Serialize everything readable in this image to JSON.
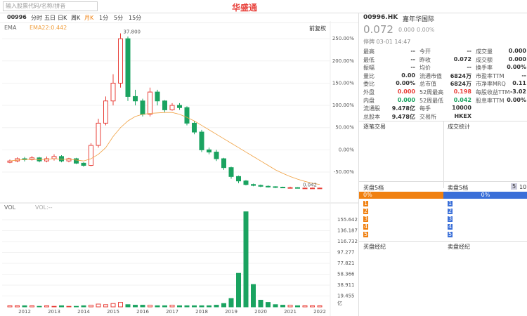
{
  "toolbar": {
    "search": "输入股票代码/名称/拼音",
    "code": "00996",
    "periods": [
      "分时",
      "五日",
      "日K",
      "周K",
      "月K",
      "1分",
      "5分",
      "15分"
    ],
    "logo": "华盛通"
  },
  "chart_data": [
    {
      "type": "candlestick",
      "ema_label": "EMA",
      "adjust": "前复权",
      "max_label": "37.800",
      "min_label": "0.042",
      "categories": [
        null,
        null,
        "2012",
        null,
        null,
        null,
        "2013",
        null,
        null,
        null,
        "2014",
        null,
        null,
        null,
        "2015",
        null,
        null,
        null,
        "2016",
        null,
        null,
        null,
        "2017",
        null,
        null,
        null,
        "2018",
        null,
        null,
        null,
        "2019",
        null,
        null,
        null,
        "2020",
        null,
        null,
        null,
        "2021",
        null,
        null,
        null,
        "2022"
      ],
      "open": [
        -28,
        -25,
        -20,
        -22,
        -18,
        -25,
        -20,
        -15,
        -25,
        -20,
        -30,
        -35,
        10,
        60,
        110,
        150,
        250,
        120,
        110,
        80,
        130,
        110,
        90,
        100,
        95,
        60,
        40,
        0,
        -5,
        -20,
        -40,
        -60,
        -70,
        -78,
        -80,
        -82,
        -83,
        -84,
        -85,
        -85,
        -86,
        -86,
        -86
      ],
      "high": [
        -22,
        -17,
        -16,
        -14,
        -16,
        -15,
        -10,
        -12,
        -18,
        -18,
        -28,
        15,
        70,
        120,
        170,
        262,
        255,
        135,
        115,
        140,
        135,
        112,
        105,
        105,
        98,
        65,
        45,
        5,
        0,
        -18,
        -38,
        -58,
        -68,
        -76,
        -78,
        -80,
        -82,
        -83,
        -83,
        -84,
        -85,
        -85,
        -85
      ],
      "low": [
        -30,
        -28,
        -26,
        -24,
        -28,
        -28,
        -24,
        -28,
        -28,
        -32,
        -38,
        -37,
        5,
        55,
        100,
        140,
        110,
        100,
        75,
        75,
        100,
        85,
        88,
        90,
        55,
        35,
        -5,
        -10,
        -25,
        -45,
        -65,
        -75,
        -80,
        -82,
        -84,
        -85,
        -86,
        -86,
        -87,
        -87,
        -87,
        -87,
        -87
      ],
      "close": [
        -25,
        -20,
        -22,
        -18,
        -25,
        -20,
        -15,
        -25,
        -20,
        -30,
        -35,
        10,
        60,
        110,
        150,
        250,
        120,
        110,
        80,
        130,
        110,
        90,
        100,
        95,
        60,
        40,
        0,
        -5,
        -20,
        -40,
        -60,
        -70,
        -78,
        -80,
        -82,
        -83,
        -84,
        -85,
        -85,
        -86,
        -86,
        -86,
        -86
      ],
      "ema": {
        "name": "EMA22:0.442",
        "color": "#f0a040",
        "values": [
          -25,
          -23,
          -22,
          -21,
          -22,
          -21,
          -20,
          -21,
          -21,
          -23,
          -25,
          -20,
          -10,
          5,
          30,
          50,
          65,
          75,
          80,
          82,
          83,
          84,
          84,
          80,
          73,
          65,
          55,
          45,
          35,
          25,
          15,
          5,
          -5,
          -15,
          -25,
          -35,
          -45,
          -53,
          -60,
          -66,
          -71,
          -75,
          -78
        ]
      },
      "up_color": "#e8403a",
      "down_color": "#1aa360",
      "ylim": [
        -110,
        266
      ],
      "yticks": [
        {
          "value": 250,
          "label": "250.00%"
        },
        {
          "value": 200,
          "label": "200.00%"
        },
        {
          "value": 150,
          "label": "150.00%"
        },
        {
          "value": 100,
          "label": "100.00%"
        },
        {
          "value": 50,
          "label": "50.00%"
        },
        {
          "value": 0,
          "label": "0.00%"
        },
        {
          "value": -50,
          "label": "-50.00%"
        }
      ]
    },
    {
      "type": "bar",
      "title": "VOL",
      "legend": "VOL:--",
      "unit": "亿",
      "values": [
        2,
        2,
        2,
        2,
        1,
        2,
        1,
        2,
        1,
        1,
        2,
        3,
        5,
        4,
        6,
        8,
        4,
        3,
        3,
        3,
        2,
        2,
        3,
        2,
        2,
        2,
        2,
        2,
        3,
        6,
        15,
        60,
        170,
        40,
        12,
        8,
        4,
        3,
        3,
        2,
        2,
        2,
        2
      ],
      "ylim": [
        0,
        172
      ],
      "yticks": [
        155.642,
        136.187,
        116.732,
        97.277,
        77.821,
        58.366,
        38.911,
        19.455
      ]
    }
  ],
  "quote": {
    "code": "00996.HK",
    "name": "嘉年华国际",
    "price": "0.072",
    "change": "0.000",
    "pct": "0.00%",
    "status": "停牌 03-01 14:47",
    "stats": [
      [
        {
          "label": "最高",
          "value": "--"
        },
        {
          "label": "今开",
          "value": "--"
        },
        {
          "label": "成交量",
          "value": "0.000"
        }
      ],
      [
        {
          "label": "最低",
          "value": "--"
        },
        {
          "label": "昨收",
          "value": "0.072"
        },
        {
          "label": "成交额",
          "value": "0.000"
        }
      ],
      [
        {
          "label": "振幅",
          "value": "--"
        },
        {
          "label": "均价",
          "value": "--"
        },
        {
          "label": "换手率",
          "value": "0.00%"
        }
      ],
      [
        {
          "label": "量比",
          "value": "0.00"
        },
        {
          "label": "流通市值",
          "value": "6824万"
        },
        {
          "label": "市盈率TTM",
          "value": "--"
        }
      ],
      [
        {
          "label": "委比",
          "value": "0.00%"
        },
        {
          "label": "总市值",
          "value": "6824万"
        },
        {
          "label": "市净率MRQ",
          "value": "0.11"
        }
      ],
      [
        {
          "label": "外盘",
          "value": "0.000",
          "color": "#e8403a"
        },
        {
          "label": "52周最高",
          "value": "0.198",
          "color": "#e8403a"
        },
        {
          "label": "每股收益TTM",
          "value": "-3.02"
        }
      ],
      [
        {
          "label": "内盘",
          "value": "0.000",
          "color": "#1aa360"
        },
        {
          "label": "52周最低",
          "value": "0.042",
          "color": "#1aa360"
        },
        {
          "label": "股息率TTM",
          "value": "0.00%"
        }
      ],
      [
        {
          "label": "流通股",
          "value": "9.478亿"
        },
        {
          "label": "每手",
          "value": "10000"
        }
      ],
      [
        {
          "label": "总股本",
          "value": "9.478亿"
        },
        {
          "label": "交易所",
          "value": "HKEX"
        }
      ]
    ],
    "trades": "逐笔交易",
    "stats_title": "成交统计",
    "bid_title": "买盘5档",
    "ask_title": "卖盘5档",
    "depth_a": "5",
    "depth_b": "10",
    "bid_pct": "0%",
    "ask_pct": "0%",
    "levels": [
      "1",
      "2",
      "3",
      "4",
      "5"
    ],
    "bid_broker": "买盘经纪",
    "ask_broker": "卖盘经纪"
  }
}
